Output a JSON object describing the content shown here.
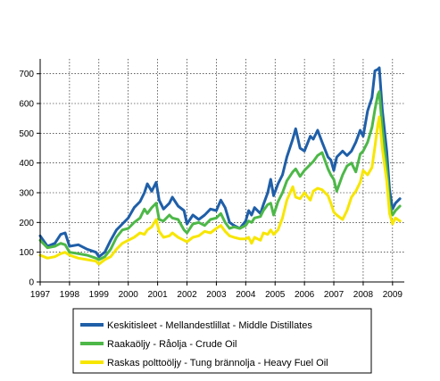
{
  "chart_data": {
    "type": "line",
    "title": "",
    "xlabel": "",
    "ylabel": "",
    "xlim": [
      1997,
      2009.4
    ],
    "ylim": [
      0,
      750
    ],
    "x_ticks": [
      1997,
      1998,
      1999,
      2000,
      2001,
      2002,
      2003,
      2004,
      2005,
      2006,
      2007,
      2008,
      2009
    ],
    "y_ticks": [
      0,
      100,
      200,
      300,
      400,
      500,
      600,
      700
    ],
    "grid": "dotted",
    "legend_position": "bottom",
    "series": [
      {
        "name": "Keskitisleet - Mellandestlillat - Middle Distillates",
        "color": "#1F5FA8",
        "points": [
          [
            1997,
            155
          ],
          [
            1997.25,
            120
          ],
          [
            1997.5,
            130
          ],
          [
            1997.7,
            160
          ],
          [
            1997.85,
            165
          ],
          [
            1998,
            120
          ],
          [
            1998.3,
            125
          ],
          [
            1998.6,
            110
          ],
          [
            1998.9,
            100
          ],
          [
            1999,
            85
          ],
          [
            1999.2,
            100
          ],
          [
            1999.4,
            140
          ],
          [
            1999.6,
            175
          ],
          [
            1999.8,
            195
          ],
          [
            2000,
            215
          ],
          [
            2000.2,
            250
          ],
          [
            2000.4,
            270
          ],
          [
            2000.55,
            300
          ],
          [
            2000.65,
            330
          ],
          [
            2000.8,
            305
          ],
          [
            2000.95,
            335
          ],
          [
            2001.05,
            275
          ],
          [
            2001.2,
            245
          ],
          [
            2001.4,
            265
          ],
          [
            2001.5,
            285
          ],
          [
            2001.7,
            255
          ],
          [
            2001.9,
            240
          ],
          [
            2002,
            195
          ],
          [
            2002.2,
            225
          ],
          [
            2002.4,
            210
          ],
          [
            2002.6,
            225
          ],
          [
            2002.8,
            245
          ],
          [
            2003,
            240
          ],
          [
            2003.15,
            275
          ],
          [
            2003.3,
            250
          ],
          [
            2003.45,
            200
          ],
          [
            2003.6,
            190
          ],
          [
            2003.8,
            180
          ],
          [
            2004,
            205
          ],
          [
            2004.1,
            240
          ],
          [
            2004.2,
            225
          ],
          [
            2004.3,
            250
          ],
          [
            2004.5,
            230
          ],
          [
            2004.6,
            260
          ],
          [
            2004.75,
            300
          ],
          [
            2004.85,
            345
          ],
          [
            2004.95,
            290
          ],
          [
            2005.1,
            330
          ],
          [
            2005.25,
            360
          ],
          [
            2005.4,
            420
          ],
          [
            2005.6,
            480
          ],
          [
            2005.7,
            515
          ],
          [
            2005.85,
            450
          ],
          [
            2006,
            440
          ],
          [
            2006.2,
            490
          ],
          [
            2006.3,
            480
          ],
          [
            2006.45,
            510
          ],
          [
            2006.6,
            470
          ],
          [
            2006.8,
            420
          ],
          [
            2006.9,
            410
          ],
          [
            2007,
            375
          ],
          [
            2007.1,
            420
          ],
          [
            2007.3,
            440
          ],
          [
            2007.45,
            425
          ],
          [
            2007.6,
            440
          ],
          [
            2007.75,
            470
          ],
          [
            2007.9,
            510
          ],
          [
            2008,
            490
          ],
          [
            2008.15,
            575
          ],
          [
            2008.3,
            620
          ],
          [
            2008.4,
            710
          ],
          [
            2008.5,
            715
          ],
          [
            2008.55,
            720
          ],
          [
            2008.65,
            580
          ],
          [
            2008.8,
            440
          ],
          [
            2008.9,
            310
          ],
          [
            2009,
            245
          ],
          [
            2009.1,
            265
          ],
          [
            2009.25,
            280
          ]
        ]
      },
      {
        "name": "Raakaöljy - Råolja - Crude Oil",
        "color": "#4DB848",
        "points": [
          [
            1997,
            140
          ],
          [
            1997.25,
            115
          ],
          [
            1997.5,
            120
          ],
          [
            1997.7,
            130
          ],
          [
            1997.85,
            125
          ],
          [
            1998,
            100
          ],
          [
            1998.3,
            95
          ],
          [
            1998.6,
            90
          ],
          [
            1998.9,
            80
          ],
          [
            1999,
            75
          ],
          [
            1999.2,
            85
          ],
          [
            1999.4,
            110
          ],
          [
            1999.6,
            150
          ],
          [
            1999.8,
            175
          ],
          [
            2000,
            180
          ],
          [
            2000.2,
            200
          ],
          [
            2000.4,
            215
          ],
          [
            2000.55,
            245
          ],
          [
            2000.65,
            230
          ],
          [
            2000.8,
            250
          ],
          [
            2000.95,
            265
          ],
          [
            2001.05,
            210
          ],
          [
            2001.2,
            205
          ],
          [
            2001.4,
            225
          ],
          [
            2001.5,
            215
          ],
          [
            2001.7,
            210
          ],
          [
            2001.9,
            175
          ],
          [
            2002,
            165
          ],
          [
            2002.2,
            195
          ],
          [
            2002.4,
            200
          ],
          [
            2002.6,
            190
          ],
          [
            2002.8,
            210
          ],
          [
            2003,
            215
          ],
          [
            2003.15,
            230
          ],
          [
            2003.3,
            200
          ],
          [
            2003.45,
            180
          ],
          [
            2003.6,
            185
          ],
          [
            2003.8,
            180
          ],
          [
            2004,
            190
          ],
          [
            2004.1,
            205
          ],
          [
            2004.2,
            200
          ],
          [
            2004.3,
            215
          ],
          [
            2004.5,
            220
          ],
          [
            2004.6,
            240
          ],
          [
            2004.75,
            260
          ],
          [
            2004.85,
            265
          ],
          [
            2004.95,
            225
          ],
          [
            2005.1,
            270
          ],
          [
            2005.25,
            300
          ],
          [
            2005.4,
            340
          ],
          [
            2005.6,
            370
          ],
          [
            2005.7,
            380
          ],
          [
            2005.85,
            355
          ],
          [
            2006,
            375
          ],
          [
            2006.2,
            395
          ],
          [
            2006.3,
            405
          ],
          [
            2006.45,
            425
          ],
          [
            2006.6,
            435
          ],
          [
            2006.8,
            380
          ],
          [
            2006.9,
            360
          ],
          [
            2007,
            345
          ],
          [
            2007.1,
            305
          ],
          [
            2007.3,
            360
          ],
          [
            2007.45,
            390
          ],
          [
            2007.6,
            400
          ],
          [
            2007.75,
            370
          ],
          [
            2007.9,
            430
          ],
          [
            2008,
            440
          ],
          [
            2008.15,
            470
          ],
          [
            2008.3,
            520
          ],
          [
            2008.4,
            580
          ],
          [
            2008.5,
            630
          ],
          [
            2008.55,
            640
          ],
          [
            2008.65,
            520
          ],
          [
            2008.8,
            380
          ],
          [
            2008.9,
            260
          ],
          [
            2009,
            225
          ],
          [
            2009.1,
            240
          ],
          [
            2009.25,
            255
          ]
        ]
      },
      {
        "name": "Raskas polttoöljy - Tung brännolja - Heavy Fuel Oil",
        "color": "#F7E600",
        "points": [
          [
            1997,
            90
          ],
          [
            1997.25,
            80
          ],
          [
            1997.5,
            85
          ],
          [
            1997.7,
            95
          ],
          [
            1997.85,
            100
          ],
          [
            1998,
            90
          ],
          [
            1998.3,
            80
          ],
          [
            1998.6,
            75
          ],
          [
            1998.9,
            70
          ],
          [
            1999,
            60
          ],
          [
            1999.2,
            75
          ],
          [
            1999.4,
            85
          ],
          [
            1999.6,
            110
          ],
          [
            1999.8,
            130
          ],
          [
            2000,
            140
          ],
          [
            2000.2,
            150
          ],
          [
            2000.4,
            165
          ],
          [
            2000.55,
            160
          ],
          [
            2000.65,
            175
          ],
          [
            2000.8,
            185
          ],
          [
            2000.95,
            210
          ],
          [
            2001.05,
            170
          ],
          [
            2001.2,
            150
          ],
          [
            2001.4,
            155
          ],
          [
            2001.5,
            165
          ],
          [
            2001.7,
            150
          ],
          [
            2001.9,
            140
          ],
          [
            2002,
            135
          ],
          [
            2002.2,
            150
          ],
          [
            2002.4,
            155
          ],
          [
            2002.6,
            170
          ],
          [
            2002.8,
            165
          ],
          [
            2003,
            180
          ],
          [
            2003.15,
            190
          ],
          [
            2003.3,
            170
          ],
          [
            2003.45,
            155
          ],
          [
            2003.6,
            150
          ],
          [
            2003.8,
            145
          ],
          [
            2004,
            145
          ],
          [
            2004.1,
            150
          ],
          [
            2004.2,
            130
          ],
          [
            2004.3,
            150
          ],
          [
            2004.5,
            140
          ],
          [
            2004.6,
            165
          ],
          [
            2004.75,
            160
          ],
          [
            2004.85,
            175
          ],
          [
            2004.95,
            160
          ],
          [
            2005.1,
            175
          ],
          [
            2005.25,
            215
          ],
          [
            2005.4,
            275
          ],
          [
            2005.6,
            320
          ],
          [
            2005.7,
            285
          ],
          [
            2005.85,
            280
          ],
          [
            2006,
            300
          ],
          [
            2006.2,
            275
          ],
          [
            2006.3,
            305
          ],
          [
            2006.45,
            315
          ],
          [
            2006.6,
            310
          ],
          [
            2006.8,
            290
          ],
          [
            2006.9,
            265
          ],
          [
            2007,
            235
          ],
          [
            2007.1,
            225
          ],
          [
            2007.3,
            210
          ],
          [
            2007.45,
            240
          ],
          [
            2007.6,
            285
          ],
          [
            2007.75,
            305
          ],
          [
            2007.9,
            335
          ],
          [
            2008,
            375
          ],
          [
            2008.15,
            360
          ],
          [
            2008.3,
            385
          ],
          [
            2008.4,
            455
          ],
          [
            2008.5,
            530
          ],
          [
            2008.55,
            555
          ],
          [
            2008.65,
            450
          ],
          [
            2008.8,
            340
          ],
          [
            2008.9,
            230
          ],
          [
            2009,
            195
          ],
          [
            2009.1,
            215
          ],
          [
            2009.25,
            205
          ]
        ]
      }
    ]
  }
}
